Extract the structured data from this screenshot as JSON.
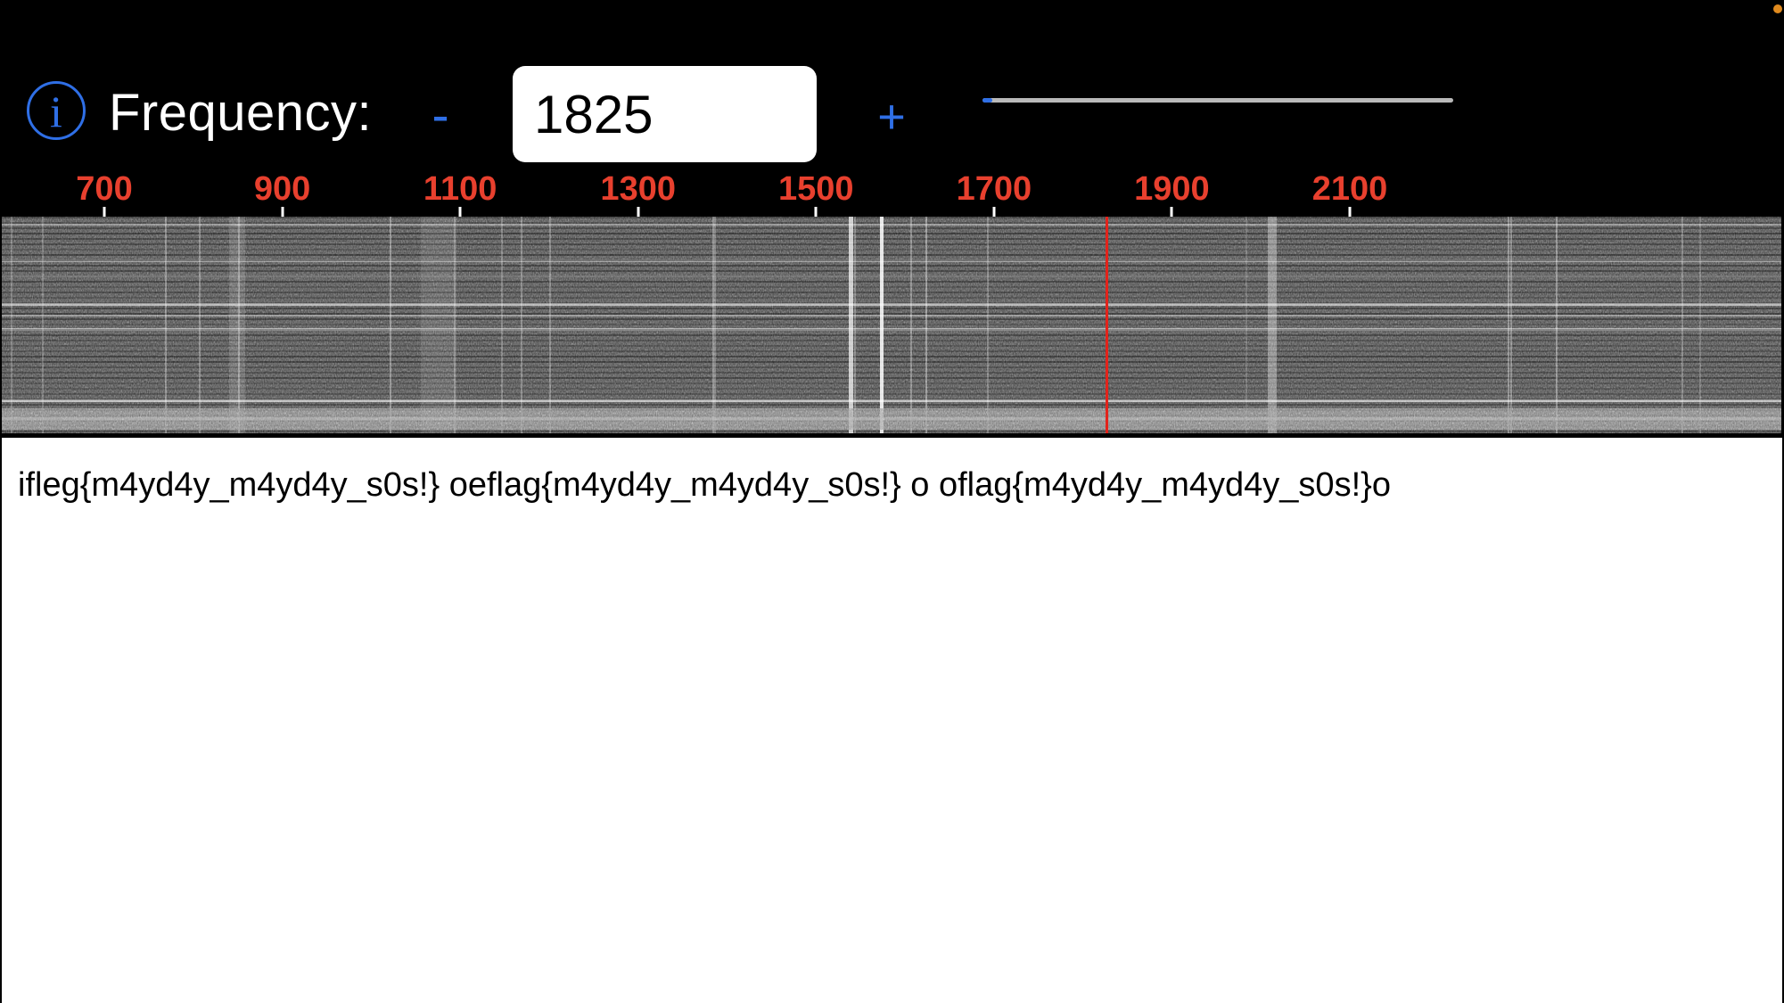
{
  "toolbar": {
    "info_icon": "info-icon",
    "info_glyph": "i",
    "frequency_label": "Frequency:",
    "minus_label": "-",
    "frequency_value": "1825",
    "plus_label": "+",
    "slider_position": 0.02
  },
  "scale": {
    "unit": "Hz",
    "ticks": [
      "700",
      "900",
      "1100",
      "1300",
      "1500",
      "1700",
      "1900",
      "2100"
    ]
  },
  "waterfall": {
    "marker_frequency": 1825
  },
  "decoded": {
    "text": "ifleg{m4yd4y_m4yd4y_s0s!} oeflag{m4yd4y_m4yd4y_s0s!} o oflag{m4yd4y_m4yd4y_s0s!}o"
  },
  "colors": {
    "accent": "#2f6fe6",
    "scale_text": "#e8402e",
    "marker": "#e3231b",
    "status_dot": "#e08a1e"
  }
}
